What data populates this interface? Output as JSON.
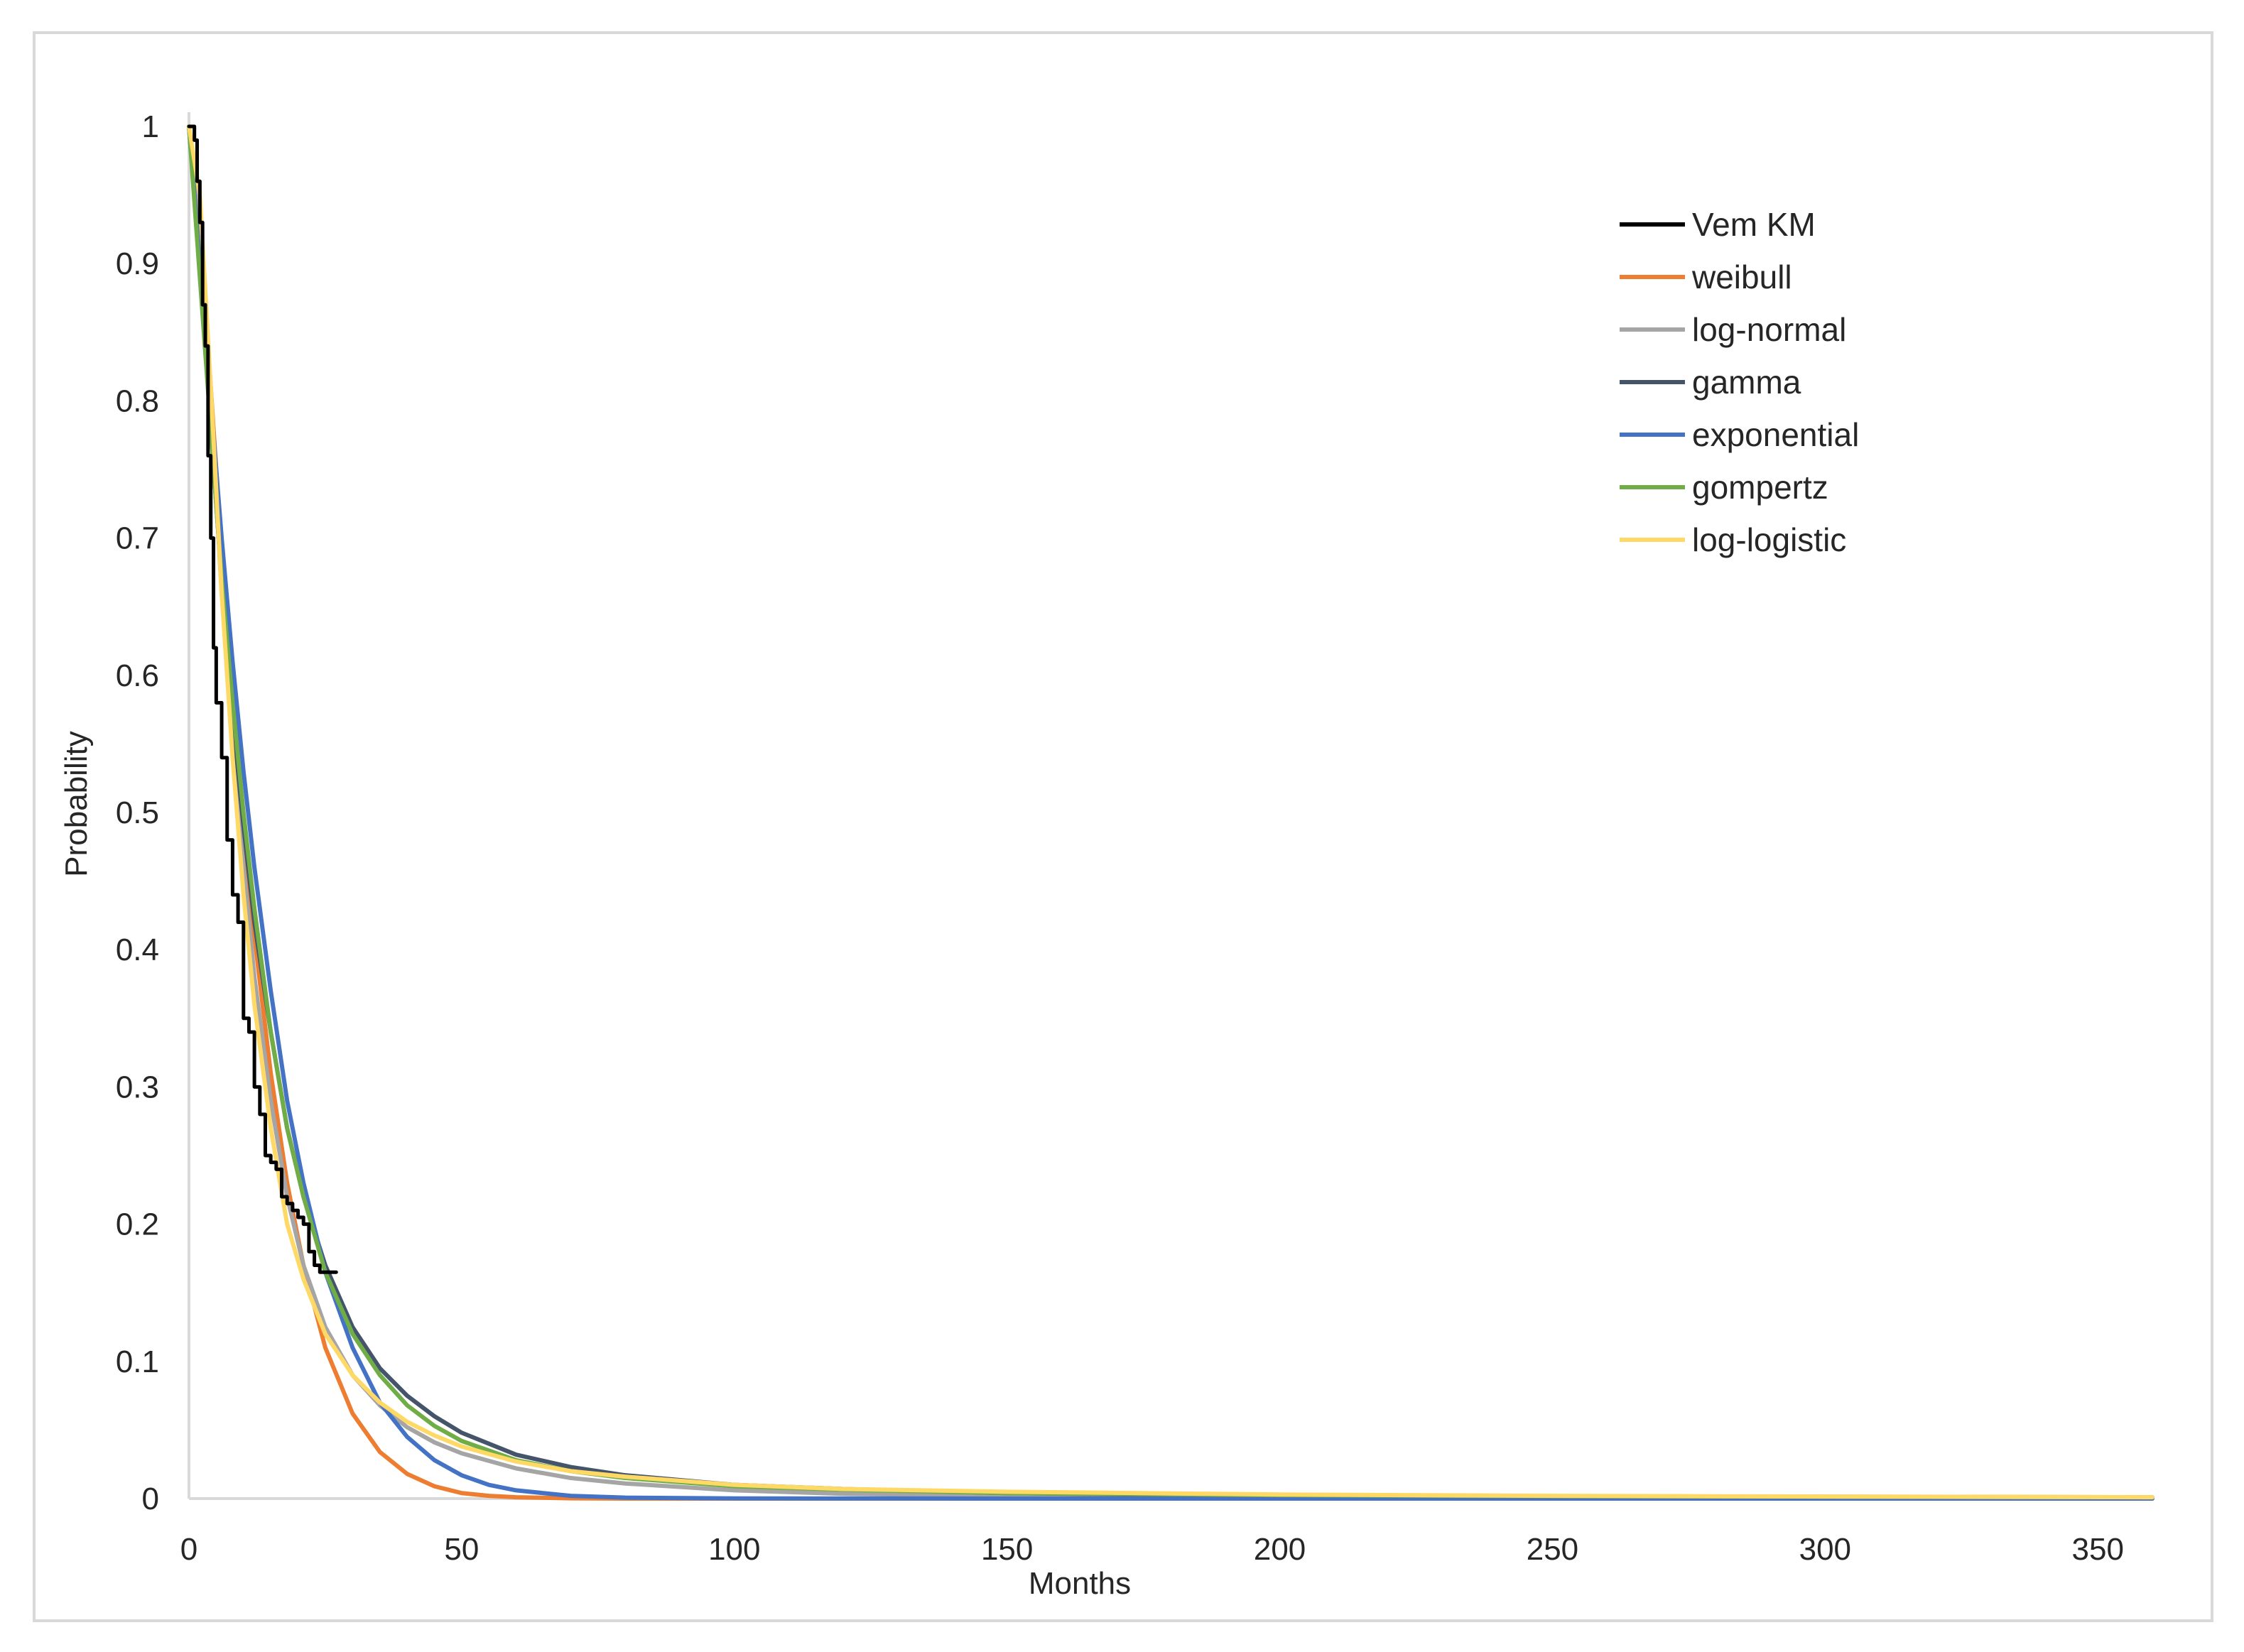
{
  "chart_data": {
    "type": "line",
    "title": "",
    "xlabel": "Months",
    "ylabel": "Probability",
    "xlim": [
      0,
      360
    ],
    "ylim": [
      0,
      1
    ],
    "x_ticks": [
      "0",
      "50",
      "100",
      "150",
      "200",
      "250",
      "300",
      "350"
    ],
    "y_ticks": [
      "0",
      "0.1",
      "0.2",
      "0.3",
      "0.4",
      "0.5",
      "0.6",
      "0.7",
      "0.8",
      "0.9",
      "1"
    ],
    "grid": false,
    "legend_position": "top-right",
    "series": [
      {
        "name": "Vem KM",
        "color": "#000000",
        "x": [
          0,
          1,
          1.5,
          2,
          2.5,
          3,
          3.5,
          4,
          4.5,
          5,
          6,
          7,
          8,
          9,
          10,
          11,
          12,
          13,
          14,
          15,
          16,
          17,
          18,
          19,
          20,
          21,
          22,
          23,
          24,
          25,
          27
        ],
        "y": [
          1.0,
          0.99,
          0.96,
          0.93,
          0.87,
          0.84,
          0.76,
          0.7,
          0.62,
          0.58,
          0.54,
          0.48,
          0.44,
          0.42,
          0.35,
          0.34,
          0.3,
          0.28,
          0.25,
          0.245,
          0.24,
          0.22,
          0.215,
          0.21,
          0.205,
          0.2,
          0.18,
          0.17,
          0.165,
          0.165,
          0.165
        ]
      },
      {
        "name": "weibull",
        "color": "#ed7d31",
        "x": [
          0,
          2,
          4,
          6,
          8,
          10,
          12,
          15,
          18,
          21,
          25,
          30,
          35,
          40,
          45,
          50,
          55,
          60,
          70,
          80,
          100,
          150,
          200,
          250,
          300,
          360
        ],
        "y": [
          1.0,
          0.93,
          0.81,
          0.69,
          0.58,
          0.49,
          0.41,
          0.31,
          0.23,
          0.17,
          0.11,
          0.062,
          0.034,
          0.018,
          0.009,
          0.004,
          0.002,
          0.001,
          0.0002,
          0,
          0,
          0,
          0,
          0,
          0,
          0
        ]
      },
      {
        "name": "log-normal",
        "color": "#a5a5a5",
        "x": [
          0,
          2,
          4,
          6,
          8,
          10,
          12,
          15,
          18,
          21,
          25,
          30,
          35,
          40,
          45,
          50,
          60,
          70,
          80,
          100,
          120,
          150,
          200,
          250,
          300,
          360
        ],
        "y": [
          1.0,
          0.94,
          0.8,
          0.66,
          0.55,
          0.46,
          0.38,
          0.29,
          0.22,
          0.17,
          0.125,
          0.09,
          0.068,
          0.052,
          0.041,
          0.033,
          0.022,
          0.015,
          0.011,
          0.006,
          0.0035,
          0.002,
          0.001,
          0.0005,
          0.0003,
          0.0002
        ]
      },
      {
        "name": "gamma",
        "color": "#44546a",
        "x": [
          0,
          2,
          4,
          6,
          8,
          10,
          12,
          15,
          18,
          21,
          25,
          30,
          35,
          40,
          45,
          50,
          60,
          70,
          80,
          100,
          120,
          150,
          200,
          250,
          300,
          360
        ],
        "y": [
          1.0,
          0.9,
          0.78,
          0.67,
          0.57,
          0.49,
          0.42,
          0.34,
          0.27,
          0.22,
          0.17,
          0.125,
          0.095,
          0.075,
          0.06,
          0.048,
          0.032,
          0.023,
          0.017,
          0.01,
          0.007,
          0.004,
          0.002,
          0.001,
          0.0007,
          0.0005
        ]
      },
      {
        "name": "exponential",
        "color": "#4472c4",
        "x": [
          0,
          2,
          4,
          6,
          8,
          10,
          12,
          15,
          18,
          21,
          25,
          30,
          35,
          40,
          45,
          50,
          55,
          60,
          70,
          80,
          100,
          150,
          200,
          250,
          300,
          360
        ],
        "y": [
          1.0,
          0.9,
          0.8,
          0.7,
          0.61,
          0.53,
          0.46,
          0.37,
          0.29,
          0.23,
          0.165,
          0.11,
          0.07,
          0.045,
          0.028,
          0.017,
          0.01,
          0.006,
          0.002,
          0.0007,
          0.0001,
          0,
          0,
          0,
          0,
          0
        ]
      },
      {
        "name": "gompertz",
        "color": "#70ad47",
        "x": [
          0,
          2,
          4,
          6,
          8,
          10,
          12,
          15,
          18,
          21,
          25,
          30,
          35,
          40,
          45,
          50,
          60,
          70,
          80,
          100,
          120,
          150,
          200,
          250,
          300,
          360
        ],
        "y": [
          1.0,
          0.89,
          0.78,
          0.67,
          0.58,
          0.5,
          0.43,
          0.34,
          0.27,
          0.22,
          0.165,
          0.12,
          0.09,
          0.068,
          0.053,
          0.042,
          0.028,
          0.02,
          0.015,
          0.009,
          0.0065,
          0.004,
          0.0025,
          0.0018,
          0.0014,
          0.001
        ]
      },
      {
        "name": "log-logistic",
        "color": "#ffd966",
        "x": [
          0,
          2,
          4,
          6,
          8,
          10,
          12,
          15,
          18,
          21,
          25,
          30,
          35,
          40,
          45,
          50,
          60,
          70,
          80,
          100,
          120,
          150,
          200,
          250,
          300,
          360
        ],
        "y": [
          1.0,
          0.95,
          0.81,
          0.66,
          0.54,
          0.44,
          0.36,
          0.27,
          0.2,
          0.16,
          0.12,
          0.09,
          0.07,
          0.056,
          0.046,
          0.038,
          0.027,
          0.02,
          0.016,
          0.01,
          0.007,
          0.005,
          0.003,
          0.002,
          0.0015,
          0.001
        ]
      }
    ]
  }
}
